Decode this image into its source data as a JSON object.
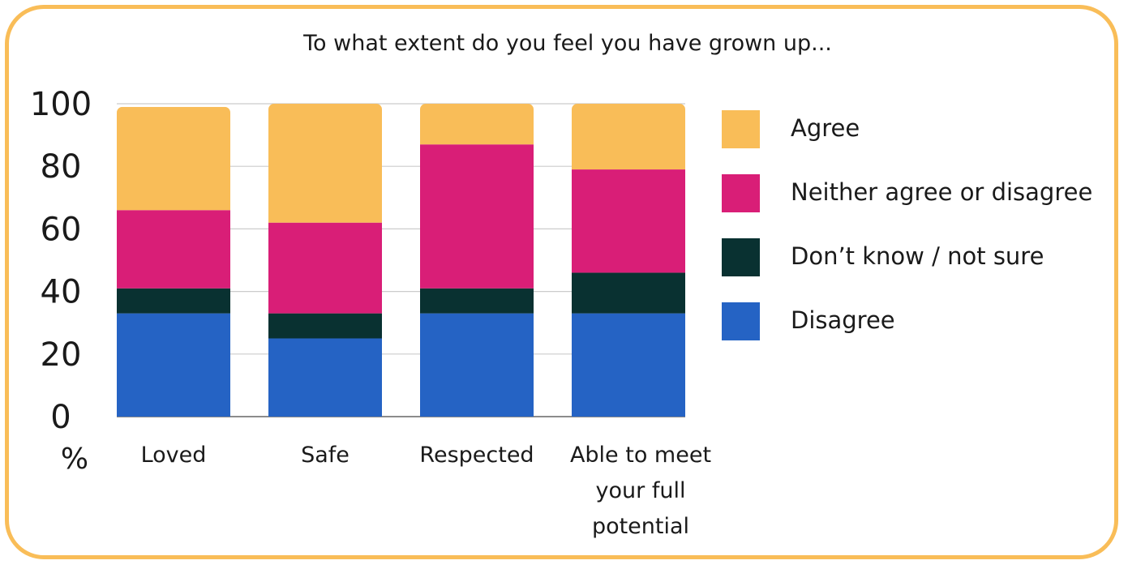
{
  "chart_data": {
    "type": "bar",
    "stacked": true,
    "title": "To what extent do you feel you have grown up...",
    "ylabel": "%",
    "ylim": [
      0,
      100
    ],
    "yticks": [
      0,
      20,
      40,
      60,
      80,
      100
    ],
    "grid": true,
    "legend_position": "right",
    "categories": [
      [
        "Loved"
      ],
      [
        "Safe"
      ],
      [
        "Respected"
      ],
      [
        "Able to meet",
        "your full",
        "potential"
      ]
    ],
    "series": [
      {
        "name": "Disagree",
        "color": "#2563c4",
        "values": [
          33,
          25,
          33,
          33
        ]
      },
      {
        "name": "Don’t know / not sure",
        "color": "#093131",
        "values": [
          8,
          8,
          8,
          13
        ]
      },
      {
        "name": "Neither agree or disagree",
        "color": "#d91e77",
        "values": [
          25,
          29,
          46,
          33
        ]
      },
      {
        "name": "Agree",
        "color": "#f9bd58",
        "values": [
          33,
          38,
          13,
          21
        ]
      }
    ],
    "legend_order": [
      "Agree",
      "Neither agree or disagree",
      "Don’t know / not sure",
      "Disagree"
    ]
  }
}
